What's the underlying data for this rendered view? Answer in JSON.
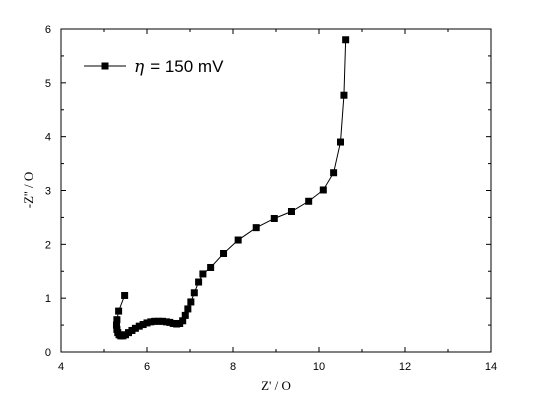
{
  "chart_data": {
    "type": "scatter",
    "xlabel": "Z' / O",
    "ylabel": "-Z'' / O",
    "xlim": [
      4,
      14
    ],
    "ylim": [
      0,
      6
    ],
    "xticks": [
      4,
      6,
      8,
      10,
      12,
      14
    ],
    "yticks": [
      0,
      1,
      2,
      3,
      4,
      5,
      6
    ],
    "grid": false,
    "legend_position": "top-left",
    "series": [
      {
        "name_symbol": "η",
        "name_text": "= 150 mV",
        "marker": "square",
        "line": true,
        "color": "#000000",
        "x": [
          5.48,
          5.34,
          5.3,
          5.29,
          5.3,
          5.32,
          5.35,
          5.39,
          5.44,
          5.5,
          5.57,
          5.65,
          5.73,
          5.82,
          5.91,
          6.0,
          6.09,
          6.18,
          6.27,
          6.36,
          6.45,
          6.53,
          6.61,
          6.69,
          6.76,
          6.83,
          6.89,
          6.95,
          7.02,
          7.1,
          7.2,
          7.3,
          7.48,
          7.78,
          8.12,
          8.54,
          8.96,
          9.36,
          9.76,
          10.1,
          10.34,
          10.5,
          10.58,
          10.62
        ],
        "y": [
          1.05,
          0.76,
          0.6,
          0.5,
          0.42,
          0.36,
          0.32,
          0.3,
          0.3,
          0.32,
          0.36,
          0.4,
          0.44,
          0.48,
          0.51,
          0.54,
          0.56,
          0.57,
          0.57,
          0.57,
          0.56,
          0.55,
          0.53,
          0.52,
          0.53,
          0.58,
          0.68,
          0.8,
          0.93,
          1.1,
          1.3,
          1.45,
          1.57,
          1.83,
          2.08,
          2.31,
          2.48,
          2.61,
          2.8,
          3.01,
          3.33,
          3.9,
          4.77,
          5.8
        ]
      }
    ]
  }
}
